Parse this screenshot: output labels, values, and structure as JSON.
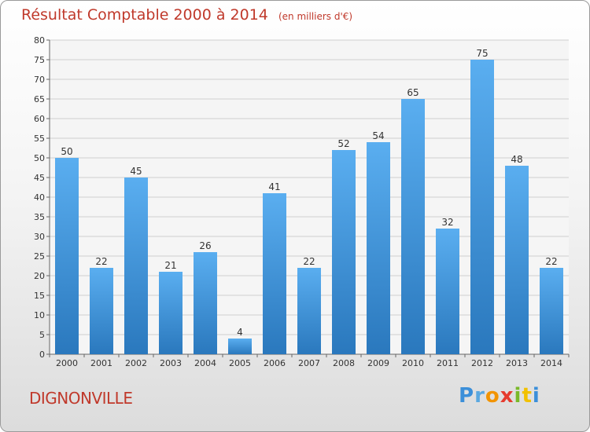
{
  "chart_data": {
    "type": "bar",
    "title": "Résultat Comptable 2000 à 2014",
    "subtitle": "(en milliers d'€)",
    "categories": [
      "2000",
      "2001",
      "2002",
      "2003",
      "2004",
      "2005",
      "2006",
      "2007",
      "2008",
      "2009",
      "2010",
      "2011",
      "2012",
      "2013",
      "2014"
    ],
    "values": [
      50,
      22,
      45,
      21,
      26,
      4,
      41,
      22,
      52,
      54,
      65,
      32,
      75,
      48,
      22
    ],
    "ylim": [
      0,
      80
    ],
    "yticks": [
      0,
      5,
      10,
      15,
      20,
      25,
      30,
      35,
      40,
      45,
      50,
      55,
      60,
      65,
      70,
      75,
      80
    ],
    "xlabel": "",
    "ylabel": "",
    "grid": true,
    "bar_color": "#3d93d8"
  },
  "commune": "DIGNONVILLE",
  "logo": {
    "letters": [
      "P",
      "r",
      "o",
      "x",
      "i",
      "t",
      "i"
    ],
    "colors": [
      "#3b8fd9",
      "#5aa8e0",
      "#f29400",
      "#e63b2e",
      "#7ab929",
      "#f2c100",
      "#3b8fd9"
    ]
  }
}
